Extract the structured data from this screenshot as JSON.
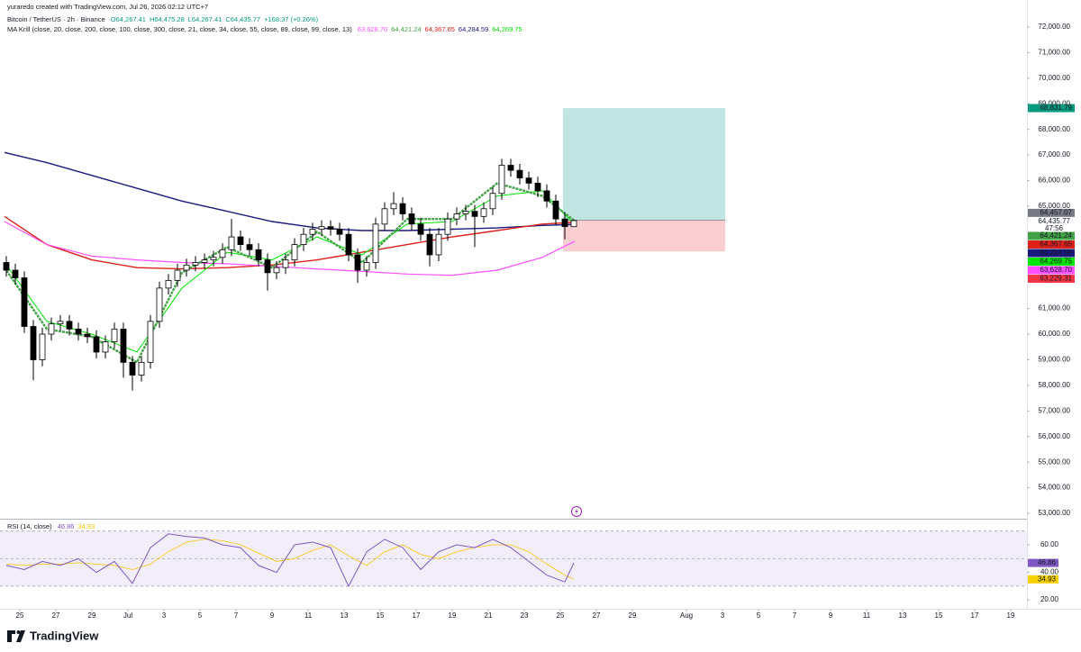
{
  "header": {
    "author_line": "yuraredo created with TradingView.com, Jul 26, 2026 02:12 UTC+7"
  },
  "footer": {
    "brand": "TradingView"
  },
  "chart_data": [
    {
      "type": "candlestick",
      "symbol": "Bitcoin / TetherUS · 2h · Binance",
      "ohlc_labels": [
        "O64,267.41",
        "H64,475.28",
        "L64,267.41",
        "C64,435.77",
        "+168.37 (+0.26%)"
      ],
      "indicator": "MA Krill (close, 20, close, 200, close, 100, close, 300, close, 21, close, 34, close, 55, close, 89, close, 99, close, 13)",
      "xlim": [
        -1.1,
        55.9
      ],
      "ylim": [
        52824,
        72528
      ],
      "yticks": [
        {
          "value": 72000,
          "label": "72,000.00"
        },
        {
          "value": 71000,
          "label": "71,000.00"
        },
        {
          "value": 70000,
          "label": "70,000.00"
        },
        {
          "value": 69000,
          "label": "69,000.00"
        },
        {
          "value": 68000,
          "label": "68,000.00"
        },
        {
          "value": 67000,
          "label": "67,000.00"
        },
        {
          "value": 66000,
          "label": "66,000.00"
        },
        {
          "value": 65000,
          "label": "65,000.00"
        },
        {
          "value": 61000,
          "label": "61,000.00"
        },
        {
          "value": 60000,
          "label": "60,000.00"
        },
        {
          "value": 59000,
          "label": "59,000.00"
        },
        {
          "value": 58000,
          "label": "58,000.00"
        },
        {
          "value": 57000,
          "label": "57,000.00"
        },
        {
          "value": 56000,
          "label": "56,000.00"
        },
        {
          "value": 55000,
          "label": "55,000.00"
        },
        {
          "value": 54000,
          "label": "54,000.00"
        },
        {
          "value": 53000,
          "label": "53,000.00"
        }
      ],
      "up_color": "#ffffff",
      "down_color": "#000000",
      "wick_color": "#000000",
      "candles": {
        "x": [
          -0.75,
          -0.25,
          0.25,
          0.75,
          1.25,
          1.75,
          2.25,
          2.75,
          3.25,
          3.75,
          4.25,
          4.75,
          5.25,
          5.75,
          6.25,
          6.75,
          7.25,
          7.75,
          8.25,
          8.75,
          9.25,
          9.75,
          10.25,
          10.75,
          11.25,
          11.75,
          12.25,
          12.75,
          13.25,
          13.75,
          14.25,
          14.75,
          15.25,
          15.75,
          16.25,
          16.75,
          17.25,
          17.75,
          18.25,
          18.75,
          19.25,
          19.75,
          20.25,
          20.75,
          21.25,
          21.75,
          22.25,
          22.75,
          23.25,
          23.75,
          24.25,
          24.75,
          25.25,
          25.75,
          26.25,
          26.75,
          27.25,
          27.75,
          28.25,
          28.75,
          29.25,
          29.75,
          30.25,
          30.75
        ],
        "open": [
          62800,
          62500,
          62200,
          60300,
          59000,
          60000,
          60400,
          60500,
          60200,
          60000,
          59900,
          59300,
          59700,
          60200,
          58900,
          58400,
          58900,
          60500,
          61800,
          62100,
          62500,
          62700,
          62800,
          62900,
          63000,
          63300,
          63800,
          63500,
          63300,
          62900,
          62400,
          62600,
          62900,
          63500,
          63900,
          64100,
          64200,
          64100,
          63900,
          63100,
          62500,
          62800,
          64300,
          64900,
          65100,
          64700,
          64300,
          63900,
          63100,
          63900,
          64500,
          64700,
          64800,
          64600,
          64900,
          65500,
          66600,
          66400,
          66100,
          65900,
          65600,
          65200,
          64500,
          64200
        ],
        "high": [
          63050,
          62750,
          62450,
          60550,
          60250,
          60650,
          60750,
          60750,
          60450,
          60250,
          60150,
          59950,
          60450,
          60450,
          59150,
          59150,
          60750,
          62050,
          62350,
          62750,
          62950,
          63050,
          63150,
          63250,
          63550,
          64500,
          64050,
          63750,
          63550,
          63150,
          62850,
          63150,
          63750,
          64150,
          64350,
          64450,
          64450,
          64350,
          64150,
          63350,
          63050,
          64550,
          65150,
          65550,
          65350,
          64950,
          64550,
          64150,
          64150,
          64750,
          64950,
          65050,
          65050,
          65150,
          65750,
          66850,
          66850,
          66650,
          66350,
          66150,
          65850,
          65450,
          64750,
          64475.28
        ],
        "low": [
          62250,
          61950,
          60050,
          58200,
          58750,
          59750,
          60150,
          59950,
          59750,
          59650,
          59050,
          59050,
          59450,
          58300,
          57800,
          58150,
          58650,
          60250,
          61550,
          61850,
          62250,
          62450,
          62550,
          62650,
          62750,
          63050,
          63250,
          63050,
          62650,
          61700,
          62150,
          62350,
          62650,
          63250,
          63650,
          63850,
          63850,
          63650,
          62850,
          62000,
          62250,
          62550,
          64050,
          64650,
          64450,
          64050,
          63650,
          62650,
          62850,
          63650,
          64250,
          64450,
          63400,
          64350,
          64650,
          65250,
          66150,
          65850,
          65650,
          65350,
          64950,
          64250,
          63700,
          64200
        ],
        "close": [
          62500,
          62200,
          60300,
          59000,
          60000,
          60400,
          60500,
          60200,
          60000,
          59900,
          59300,
          59700,
          60200,
          58900,
          58400,
          58900,
          60500,
          61800,
          62100,
          62500,
          62700,
          62800,
          62900,
          63000,
          63300,
          63800,
          63500,
          63300,
          62900,
          62400,
          62600,
          62900,
          63500,
          63900,
          64100,
          64200,
          64100,
          63900,
          63100,
          62500,
          62800,
          64300,
          64900,
          65100,
          64700,
          64300,
          63900,
          63100,
          63900,
          64500,
          64700,
          64800,
          64600,
          64900,
          65500,
          66600,
          66400,
          66100,
          65900,
          65600,
          65200,
          64500,
          64200,
          64435.77
        ]
      },
      "last_price_label": "64,435.77",
      "countdown": "47:56",
      "ma_x": [
        -0.85,
        1.5,
        4,
        6.5,
        9,
        11.5,
        14,
        16.5,
        19,
        21.5,
        24,
        26.5,
        29,
        30.8
      ],
      "series": [
        {
          "color": "#ff4fff",
          "width": 1.2,
          "values": [
            64400,
            63500,
            63050,
            62900,
            62800,
            62750,
            62650,
            62550,
            62450,
            62350,
            62300,
            62500,
            63000,
            63628.7
          ],
          "last_label": "63,628.70"
        },
        {
          "color": "#43a047",
          "width": 2.4,
          "values": [
            62600,
            60200,
            59900,
            58900,
            62400,
            63400,
            62600,
            64000,
            62800,
            64500,
            64500,
            65900,
            65400,
            64421.24
          ],
          "last_label": "64,421.24"
        },
        {
          "color": "#e0201b",
          "width": 1.4,
          "values": [
            64600,
            63500,
            62900,
            62600,
            62550,
            62600,
            62700,
            62900,
            63200,
            63500,
            63800,
            64050,
            64300,
            64367.65
          ],
          "last_label": "64,367.65"
        },
        {
          "color": "#1a1a7e",
          "width": 1.4,
          "values": [
            67100,
            66700,
            66200,
            65700,
            65200,
            64800,
            64400,
            64150,
            64050,
            64050,
            64100,
            64150,
            64250,
            64284.59
          ],
          "last_label": "64,284.59"
        },
        {
          "color": "#00e600",
          "width": 1,
          "values": [
            62800,
            60500,
            60000,
            59300,
            61800,
            63200,
            62900,
            63800,
            63100,
            64300,
            64400,
            65400,
            65600,
            64269.75
          ],
          "last_label": "64,269.75"
        }
      ],
      "position": {
        "x_start": 30.15,
        "x_end": 39.15,
        "entry": 64457.07,
        "target": 68831.79,
        "stop": 63229.31,
        "entry_label": "64,457.07",
        "target_label": "68,831.79",
        "stop_label": "63,229.31",
        "profit_color": "#b2dfdb",
        "loss_color": "#f8c9cc",
        "target_bg": "#089981",
        "stop_bg": "#f23645",
        "entry_bg": "#787b86"
      }
    },
    {
      "type": "line",
      "title": "RSI (14, close)",
      "xlim": [
        -1.1,
        55.9
      ],
      "ylim": [
        14.2,
        73.1
      ],
      "yticks": [
        {
          "value": 60,
          "label": "60.00"
        },
        {
          "value": 40,
          "label": "40.00"
        },
        {
          "value": 20,
          "label": "20.00"
        }
      ],
      "band": [
        30,
        70
      ],
      "band_color": "#ede7f6",
      "levels": [
        70,
        50,
        30
      ],
      "xticks": [
        {
          "value": 0,
          "label": "25"
        },
        {
          "value": 2,
          "label": "27"
        },
        {
          "value": 4,
          "label": "29"
        },
        {
          "value": 6,
          "label": "Jul"
        },
        {
          "value": 8,
          "label": "3"
        },
        {
          "value": 10,
          "label": "5"
        },
        {
          "value": 12,
          "label": "7"
        },
        {
          "value": 14,
          "label": "9"
        },
        {
          "value": 16,
          "label": "11"
        },
        {
          "value": 18,
          "label": "13"
        },
        {
          "value": 20,
          "label": "15"
        },
        {
          "value": 22,
          "label": "17"
        },
        {
          "value": 24,
          "label": "19"
        },
        {
          "value": 26,
          "label": "21"
        },
        {
          "value": 28,
          "label": "23"
        },
        {
          "value": 30,
          "label": "25"
        },
        {
          "value": 32,
          "label": "27"
        },
        {
          "value": 34,
          "label": "29"
        },
        {
          "value": 37,
          "label": "Aug"
        },
        {
          "value": 39,
          "label": "3"
        },
        {
          "value": 41,
          "label": "5"
        },
        {
          "value": 43,
          "label": "7"
        },
        {
          "value": 45,
          "label": "9"
        },
        {
          "value": 47,
          "label": "11"
        },
        {
          "value": 49,
          "label": "13"
        },
        {
          "value": 51,
          "label": "15"
        },
        {
          "value": 53,
          "label": "17"
        },
        {
          "value": 55,
          "label": "19"
        }
      ],
      "x": [
        -0.75,
        0.25,
        1.25,
        2.25,
        3.25,
        4.25,
        5.25,
        6.25,
        7.25,
        8.25,
        9.25,
        10.25,
        11.25,
        12.25,
        13.25,
        14.25,
        15.25,
        16.25,
        17.25,
        18.25,
        19.25,
        20.25,
        21.25,
        22.25,
        23.25,
        24.25,
        25.25,
        26.25,
        27.25,
        28.25,
        29.25,
        30.25,
        30.75
      ],
      "series": [
        {
          "color": "#7e57c2",
          "label_bg": "#7e57c2",
          "values": [
            45,
            42,
            48,
            45,
            50,
            40,
            48,
            32,
            58,
            68,
            66,
            65,
            60,
            58,
            45,
            40,
            60,
            62,
            58,
            30,
            55,
            64,
            58,
            42,
            55,
            60,
            58,
            64,
            58,
            48,
            38,
            33,
            46.86
          ],
          "last_label": "46.86"
        },
        {
          "color": "#f7c600",
          "label_bg": "#f7d000",
          "values": [
            46,
            45,
            46,
            46,
            47,
            46,
            45,
            42,
            46,
            55,
            62,
            64,
            63,
            60,
            54,
            48,
            50,
            56,
            60,
            52,
            45,
            55,
            60,
            53,
            50,
            55,
            58,
            60,
            60,
            55,
            46,
            38,
            34.93
          ],
          "last_label": "34.93"
        }
      ]
    }
  ]
}
